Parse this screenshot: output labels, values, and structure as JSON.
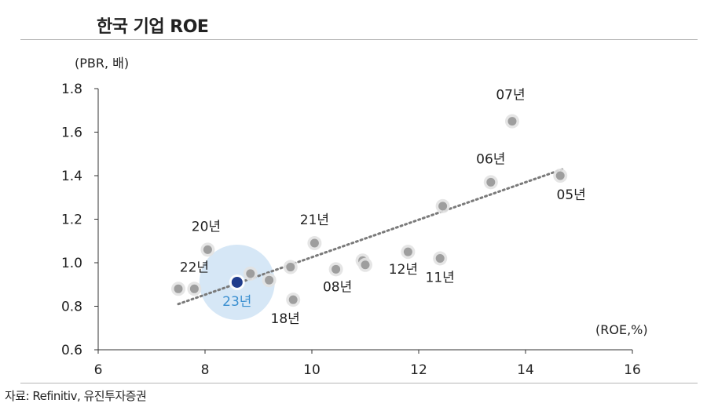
{
  "title": "한국 기업 ROE",
  "source": "자료: Refinitiv, 유진투자증권",
  "chart_data": {
    "type": "scatter",
    "ylabel": "(PBR, 배)",
    "xlabel": "(ROE,%)",
    "xlim": [
      6,
      16
    ],
    "ylim": [
      0.6,
      1.8
    ],
    "xticks": [
      6,
      8,
      10,
      12,
      14,
      16
    ],
    "yticks": [
      0.6,
      0.8,
      1.0,
      1.2,
      1.4,
      1.6,
      1.8
    ],
    "x_tick_labels": [
      "6",
      "8",
      "10",
      "12",
      "14",
      "16"
    ],
    "y_tick_labels": [
      "0.6",
      "0.8",
      "1.0",
      "1.2",
      "1.4",
      "1.6",
      "1.8"
    ],
    "grid": false,
    "series": [
      {
        "points": [
          {
            "x": 13.75,
            "y": 1.65,
            "label": "07년"
          },
          {
            "x": 13.35,
            "y": 1.37,
            "label": "06년"
          },
          {
            "x": 14.65,
            "y": 1.4,
            "label": "05년"
          },
          {
            "x": 12.45,
            "y": 1.26,
            "label": ""
          },
          {
            "x": 10.05,
            "y": 1.09,
            "label": "21년"
          },
          {
            "x": 8.05,
            "y": 1.06,
            "label": "20년"
          },
          {
            "x": 11.8,
            "y": 1.05,
            "label": "12년"
          },
          {
            "x": 12.4,
            "y": 1.02,
            "label": "11년"
          },
          {
            "x": 10.95,
            "y": 1.01,
            "label": ""
          },
          {
            "x": 11.0,
            "y": 0.99,
            "label": ""
          },
          {
            "x": 9.6,
            "y": 0.98,
            "label": ""
          },
          {
            "x": 10.45,
            "y": 0.97,
            "label": "08년"
          },
          {
            "x": 8.85,
            "y": 0.95,
            "label": ""
          },
          {
            "x": 9.2,
            "y": 0.92,
            "label": ""
          },
          {
            "x": 7.8,
            "y": 0.88,
            "label": "22년"
          },
          {
            "x": 7.5,
            "y": 0.88,
            "label": ""
          },
          {
            "x": 9.65,
            "y": 0.83,
            "label": "18년"
          },
          {
            "x": 8.6,
            "y": 0.91,
            "label": "23년",
            "highlight": true
          }
        ]
      }
    ],
    "trendline": {
      "style": "dotted",
      "x": [
        7.5,
        14.7
      ],
      "y": [
        0.81,
        1.43
      ]
    },
    "colors": {
      "point": "#9e9e9e",
      "highlight": "#1f3c8c",
      "highlight_halo": "#cfe3f4",
      "highlight_label": "#3a8fd0",
      "trend": "#7a7a7a"
    }
  }
}
